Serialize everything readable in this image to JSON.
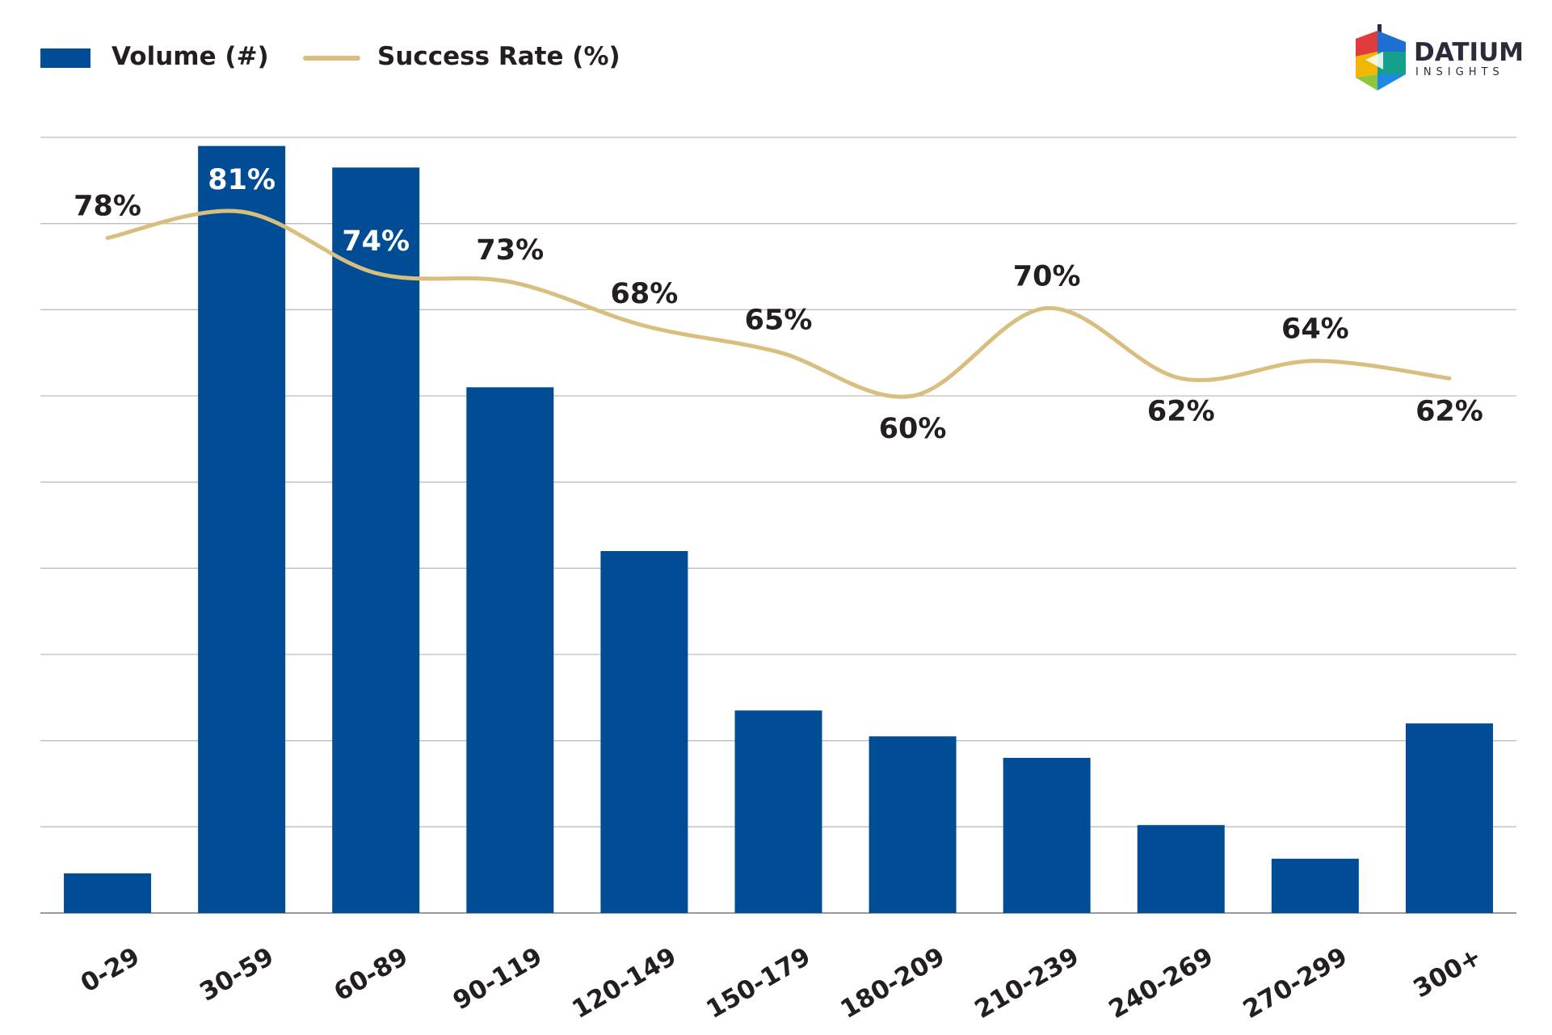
{
  "chart_data": {
    "type": "bar",
    "categories": [
      "0-29",
      "30-59",
      "60-89",
      "90-119",
      "120-149",
      "150-179",
      "180-209",
      "210-239",
      "240-269",
      "270-299",
      "300+"
    ],
    "series": [
      {
        "name": "Volume (#)",
        "type": "bar",
        "color": "#004d96",
        "values": [
          46,
          890,
          865,
          610,
          420,
          235,
          205,
          180,
          102,
          63,
          220
        ]
      },
      {
        "name": "Success Rate (%)",
        "type": "line",
        "color": "#d9bf7f",
        "smooth": true,
        "values": [
          78,
          81,
          74,
          73,
          68,
          65,
          60,
          70,
          62,
          64,
          62
        ]
      }
    ],
    "value_labels": [
      "78%",
      "81%",
      "74%",
      "73%",
      "68%",
      "65%",
      "60%",
      "70%",
      "62%",
      "64%",
      "62%"
    ],
    "title": "",
    "xlabel": "",
    "ylabel": "",
    "grid": true,
    "legend_position": "top-left",
    "tick_label_rotation": -30
  },
  "legend": [
    {
      "label": "Volume (#)",
      "color": "#004d96",
      "kind": "box"
    },
    {
      "label": "Success Rate (%)",
      "color": "#d9bf7f",
      "kind": "line"
    }
  ],
  "brand": {
    "name": "DATIUM",
    "tagline": "INSIGHTS"
  }
}
